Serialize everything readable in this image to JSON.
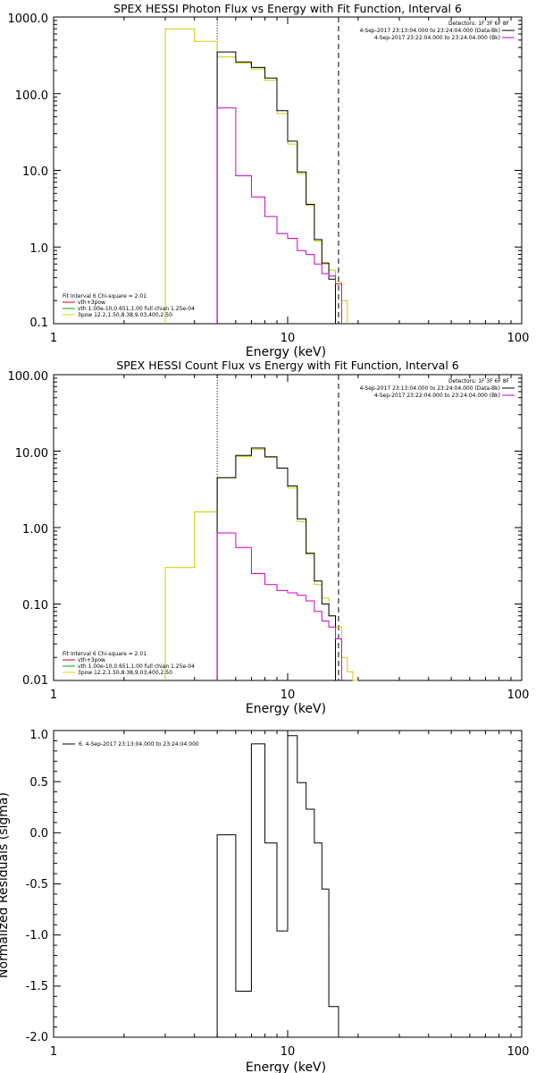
{
  "chart_data": [
    {
      "type": "line",
      "title": "SPEX HESSI Photon Flux vs Energy with Fit Function, Interval 6",
      "xlabel": "Energy (keV)",
      "ylabel": "",
      "xscale": "log",
      "yscale": "log",
      "xlim": [
        1,
        100
      ],
      "ylim": [
        0.1,
        1000
      ],
      "xticks": [
        {
          "v": 1,
          "label": "1"
        },
        {
          "v": 10,
          "label": "10"
        },
        {
          "v": 100,
          "label": "100"
        }
      ],
      "yticks": [
        {
          "v": 0.1,
          "label": "0.1"
        },
        {
          "v": 1,
          "label": "1.0"
        },
        {
          "v": 10,
          "label": "10.0"
        },
        {
          "v": 100,
          "label": "100.0"
        },
        {
          "v": 1000,
          "label": "1000.0"
        }
      ],
      "vlines": [
        {
          "x": 5.0,
          "style": "dotted"
        },
        {
          "x": 16.5,
          "style": "dashed"
        }
      ],
      "info_lines": [
        "Detectors: 1F 3F 6F 8F",
        "4-Sep-2017 23:13:04.000 to 23:24:04.000 (Data-Bk)",
        "4-Sep-2017 23:22:04.000 to 23:24:04.000 (Bk)"
      ],
      "info_colors": [
        "#000000",
        "#000000",
        "#cc00cc"
      ],
      "legend_lines": [
        "Fit Interval  6   Chi-square = 2.01",
        "vth+3pow",
        "vth 1.00e-10,0.651,1.00  full chian 1.25e-04",
        "3pow 12.2,1.50,8.38,9.03,400,2.50"
      ],
      "legend_colors": [
        "",
        "#cc0000",
        "#00aa00",
        "#dddd00"
      ],
      "series": [
        {
          "name": "vth+3pow",
          "color": "#cccc00",
          "edges": [
            3,
            4,
            5,
            6,
            7,
            8,
            9,
            10,
            11,
            12,
            13,
            14,
            15,
            16,
            17,
            18
          ],
          "values": [
            700,
            480,
            300,
            250,
            210,
            150,
            55,
            22,
            9,
            3.5,
            1.2,
            0.6,
            0.5,
            0.35,
            0.2
          ]
        },
        {
          "name": "Data",
          "color": "#000000",
          "edges": [
            5,
            6,
            7,
            8,
            9,
            10,
            11,
            12,
            13,
            14,
            15,
            16
          ],
          "values": [
            350,
            260,
            220,
            160,
            60,
            24,
            9.5,
            3.6,
            1.25,
            0.62,
            0.38
          ]
        },
        {
          "name": "vth",
          "color": "#cc00cc",
          "edges": [
            5,
            6,
            7,
            8,
            9,
            10,
            11,
            12,
            13,
            14,
            15,
            16,
            17
          ],
          "values": [
            65,
            8.5,
            4.5,
            2.5,
            1.5,
            1.3,
            0.9,
            0.8,
            0.6,
            0.45,
            0.42,
            0.33
          ]
        }
      ]
    },
    {
      "type": "line",
      "title": "SPEX HESSI Count Flux vs Energy with Fit Function, Interval 6",
      "xlabel": "Energy (keV)",
      "ylabel": "",
      "xscale": "log",
      "yscale": "log",
      "xlim": [
        1,
        100
      ],
      "ylim": [
        0.01,
        100
      ],
      "xticks": [
        {
          "v": 1,
          "label": "1"
        },
        {
          "v": 10,
          "label": "10"
        },
        {
          "v": 100,
          "label": "100"
        }
      ],
      "yticks": [
        {
          "v": 0.01,
          "label": "0.01"
        },
        {
          "v": 0.1,
          "label": "0.10"
        },
        {
          "v": 1,
          "label": "1.00"
        },
        {
          "v": 10,
          "label": "10.00"
        },
        {
          "v": 100,
          "label": "100.00"
        }
      ],
      "vlines": [
        {
          "x": 5.0,
          "style": "dotted"
        },
        {
          "x": 16.5,
          "style": "dashed"
        }
      ],
      "info_lines": [
        "Detectors: 1F 3F 6F 8F",
        "4-Sep-2017 23:13:04.000 to 23:24:04.000 (Data-Bk)",
        "4-Sep-2017 23:22:04.000 to 23:24:04.000 (Bk)"
      ],
      "info_colors": [
        "#000000",
        "#000000",
        "#cc00cc"
      ],
      "legend_lines": [
        "Fit Interval  6   Chi-square = 2.01",
        "vth+3pow",
        "vth 1.00e-10,0.651,1.00  full chian 1.25e-04",
        "3pow 12.2,1.50,8.38,9.03,400,2.50"
      ],
      "legend_colors": [
        "",
        "#cc0000",
        "#00aa00",
        "#dddd00"
      ],
      "series": [
        {
          "name": "vth+3pow",
          "color": "#cccc00",
          "edges": [
            3,
            4,
            5,
            6,
            7,
            8,
            9,
            10,
            11,
            12,
            13,
            14,
            15,
            16,
            17,
            18,
            19,
            20
          ],
          "values": [
            0.3,
            1.6,
            4.5,
            8.5,
            10.5,
            8.5,
            6,
            3.3,
            1.2,
            0.45,
            0.18,
            0.12,
            0.07,
            0.05,
            0.02,
            0.013,
            0.01
          ]
        },
        {
          "name": "Data",
          "color": "#000000",
          "edges": [
            5,
            6,
            7,
            8,
            9,
            10,
            11,
            12,
            13,
            14,
            15,
            16
          ],
          "values": [
            4.5,
            8.8,
            11,
            8.4,
            6,
            3.5,
            1.3,
            0.46,
            0.2,
            0.1,
            0.07
          ]
        },
        {
          "name": "vth",
          "color": "#cc00cc",
          "edges": [
            5,
            6,
            7,
            8,
            9,
            10,
            11,
            12,
            13,
            14,
            15,
            16,
            17
          ],
          "values": [
            0.85,
            0.55,
            0.25,
            0.18,
            0.15,
            0.14,
            0.13,
            0.11,
            0.08,
            0.06,
            0.05,
            0.035
          ]
        }
      ]
    },
    {
      "type": "line",
      "title": "",
      "xlabel": "Energy (keV)",
      "ylabel": "Normalized Residuals (sigma)",
      "xscale": "log",
      "yscale": "linear",
      "xlim": [
        1,
        100
      ],
      "ylim": [
        -2.0,
        1.0
      ],
      "xticks": [
        {
          "v": 1,
          "label": "1"
        },
        {
          "v": 10,
          "label": "10"
        },
        {
          "v": 100,
          "label": "100"
        }
      ],
      "yticks": [
        {
          "v": -2.0,
          "label": "-2.0"
        },
        {
          "v": -1.5,
          "label": "-1.5"
        },
        {
          "v": -1.0,
          "label": "-1.0"
        },
        {
          "v": -0.5,
          "label": "-0.5"
        },
        {
          "v": 0.0,
          "label": "0.0"
        },
        {
          "v": 0.5,
          "label": "0.5"
        },
        {
          "v": 1.0,
          "label": "1.0"
        }
      ],
      "legend_lines": [
        "6.  4-Sep-2017 23:13:04.000 to 23:24:04.000"
      ],
      "legend_colors": [
        "#000000"
      ],
      "series": [
        {
          "name": "6.  4-Sep-2017 23:13:04.000 to 23:24:04.000",
          "color": "#000000",
          "edges": [
            5,
            6,
            7,
            8,
            9,
            10,
            11,
            12,
            13,
            14,
            15,
            16.5
          ],
          "values": [
            -0.02,
            -1.55,
            0.87,
            -0.1,
            -0.96,
            0.95,
            0.49,
            0.23,
            -0.1,
            -0.55,
            -1.7
          ]
        }
      ]
    }
  ]
}
